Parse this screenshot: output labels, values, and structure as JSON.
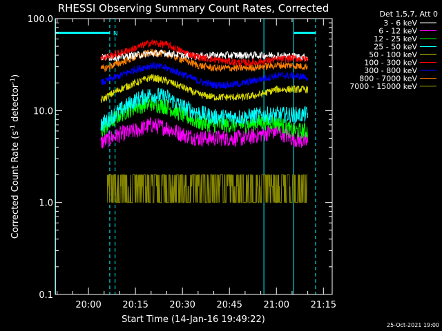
{
  "chart_data": {
    "type": "line",
    "title": "RHESSI Observing Summary Count Rates, Corrected",
    "xlabel": "Start Time (14-Jan-16 19:49:22)",
    "ylabel_main": "Corrected Count Rate (s",
    "ylabel_sup1": "-1",
    "ylabel_mid": " detector",
    "ylabel_sup2": "-1",
    "ylabel_end": ")",
    "ylog": true,
    "ylim": [
      0.1,
      100
    ],
    "xlim_minutes": [
      -10.6,
      77.8
    ],
    "y_ticks": [
      {
        "value": 100,
        "label": "100.0"
      },
      {
        "value": 10,
        "label": "10.0"
      },
      {
        "value": 1,
        "label": "1.0"
      },
      {
        "value": 0.1,
        "label": "0.1"
      }
    ],
    "x_ticks": [
      {
        "value": 0,
        "label": "20:00"
      },
      {
        "value": 15,
        "label": "20:15"
      },
      {
        "value": 30,
        "label": "20:30"
      },
      {
        "value": 45,
        "label": "20:45"
      },
      {
        "value": 60,
        "label": "21:00"
      },
      {
        "value": 75,
        "label": "21:15"
      }
    ],
    "legend_title": "Det 1,5,7, Att 0",
    "legend_position": "right-outside",
    "night_marker_label": "N",
    "events": [
      {
        "kind": "night-start",
        "minute": 6.8
      },
      {
        "kind": "night-end",
        "minute": 56.0
      },
      {
        "kind": "saa-end",
        "minute": -10.5
      },
      {
        "kind": "saa-start",
        "minute": 65.5
      },
      {
        "kind": "dashed",
        "minute": 8.5
      },
      {
        "kind": "dashed",
        "minute": 72.5
      }
    ],
    "bars": [
      {
        "x0": -10.5,
        "x1": 6.8,
        "y": 70
      },
      {
        "x0": 65.5,
        "x1": 72.5,
        "y": 70
      }
    ],
    "series": [
      {
        "name": "3 - 6 keV",
        "color": "#ffffff",
        "x": [
          4,
          10,
          15,
          20,
          25,
          30,
          35,
          40,
          45,
          50,
          55,
          60,
          65,
          70
        ],
        "values": [
          38,
          38,
          40,
          42,
          42,
          40,
          39,
          40,
          40,
          40,
          40,
          40,
          39,
          38
        ]
      },
      {
        "name": "6 - 12 keV",
        "color": "#ff00ff",
        "x": [
          4,
          10,
          15,
          20,
          25,
          30,
          35,
          40,
          45,
          50,
          55,
          60,
          65,
          70
        ],
        "values": [
          4.5,
          5.5,
          6,
          7,
          6.5,
          5.5,
          5,
          5,
          5,
          5,
          5.5,
          6,
          5,
          4.5
        ]
      },
      {
        "name": "12 - 25 keV",
        "color": "#00ff00",
        "x": [
          4,
          10,
          15,
          20,
          25,
          30,
          35,
          40,
          45,
          50,
          55,
          60,
          65,
          70
        ],
        "values": [
          6,
          9,
          11,
          12,
          11,
          9,
          7.5,
          7,
          7,
          7,
          7.5,
          7.5,
          6,
          6
        ]
      },
      {
        "name": "25 - 50 keV",
        "color": "#00ffff",
        "x": [
          4,
          10,
          15,
          20,
          25,
          30,
          35,
          40,
          45,
          50,
          55,
          60,
          65,
          70
        ],
        "values": [
          7,
          10,
          13,
          15,
          14,
          11,
          9.5,
          8.5,
          8.5,
          8.5,
          9,
          9,
          9,
          9
        ]
      },
      {
        "name": "50 - 100 keV",
        "color": "#dddd00",
        "x": [
          4,
          10,
          15,
          20,
          25,
          30,
          35,
          40,
          45,
          50,
          55,
          60,
          65,
          70
        ],
        "values": [
          13,
          17,
          20,
          23,
          21,
          18,
          15,
          14,
          14,
          14,
          15,
          17,
          17,
          17
        ]
      },
      {
        "name": "100 - 300 keV",
        "color": "#ff0000",
        "x": [
          4,
          10,
          15,
          20,
          25,
          30,
          35,
          40,
          45,
          50,
          55,
          60,
          65,
          70
        ],
        "values": [
          37,
          42,
          48,
          55,
          52,
          44,
          38,
          36,
          34,
          33,
          34,
          36,
          37,
          36
        ]
      },
      {
        "name": "300 - 800 keV",
        "color": "#0000ff",
        "x": [
          4,
          10,
          15,
          20,
          25,
          30,
          35,
          40,
          45,
          50,
          55,
          60,
          65,
          70
        ],
        "values": [
          20,
          24,
          28,
          31,
          29,
          25,
          21,
          19,
          19,
          20,
          22,
          24,
          24,
          23
        ]
      },
      {
        "name": "800 - 7000 keV",
        "color": "#ff8000",
        "x": [
          4,
          10,
          15,
          20,
          25,
          30,
          35,
          40,
          45,
          50,
          55,
          60,
          65,
          70
        ],
        "values": [
          28,
          33,
          38,
          43,
          41,
          36,
          31,
          29,
          29,
          29,
          30,
          31,
          31,
          30
        ]
      },
      {
        "name": "7000 - 15000 keV",
        "color": "#888800",
        "x": [
          6,
          9,
          12,
          15,
          18,
          20,
          23,
          27,
          31,
          36,
          41,
          46,
          52,
          57,
          62,
          66,
          70
        ],
        "values": [
          1.0,
          2.0,
          1.9,
          1.8,
          1.7,
          2.0,
          1.9,
          1.0,
          1.5,
          1.0,
          1.0,
          1.0,
          1.8,
          1.9,
          1.8,
          1.0,
          1.5
        ]
      }
    ]
  },
  "footer_timestamp": "25-Oct-2021 19:00"
}
